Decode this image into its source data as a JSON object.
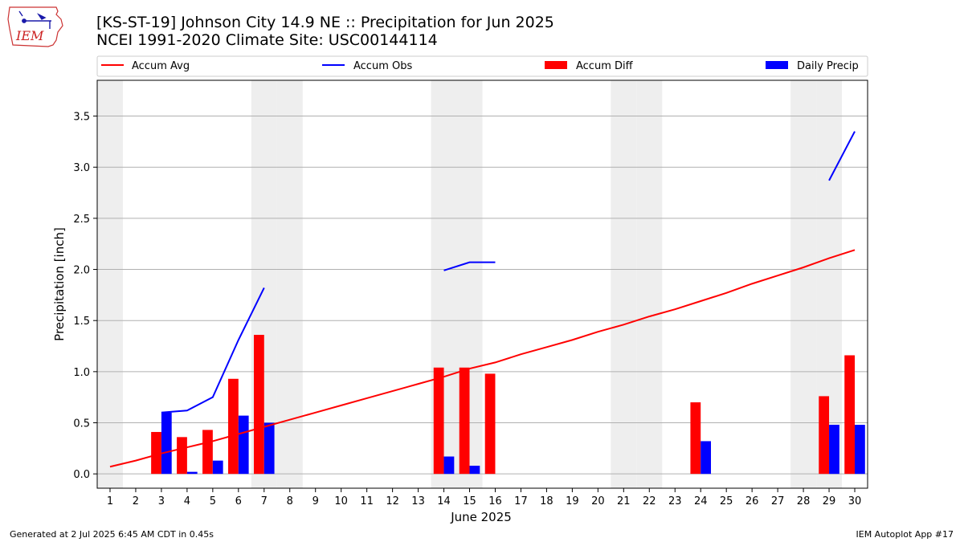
{
  "header": {
    "title_line1": "[KS-ST-19] Johnson City 14.9 NE :: Precipitation for Jun 2025",
    "title_line2": "NCEI 1991-2020 Climate Site: USC00144114",
    "logo_text": "IEM"
  },
  "footer": {
    "left": "Generated at 2 Jul 2025 6:45 AM CDT in 0.45s",
    "right": "IEM Autoplot App #17"
  },
  "colors": {
    "accum_avg": "#ff0000",
    "accum_obs": "#0000ff",
    "accum_diff": "#ff0000",
    "daily_precip": "#0000ff",
    "weekend_shade": "#eeeeee",
    "grid": "#b0b0b0"
  },
  "chart_data": {
    "type": "bar",
    "xlabel": "June 2025",
    "ylabel": "Precipitation [inch]",
    "xlim": [
      0.5,
      30.5
    ],
    "ylim": [
      -0.14,
      3.85
    ],
    "yticks": [
      0.0,
      0.5,
      1.0,
      1.5,
      2.0,
      2.5,
      3.0,
      3.5
    ],
    "ytick_labels": [
      "0.0",
      "0.5",
      "1.0",
      "1.5",
      "2.0",
      "2.5",
      "3.0",
      "3.5"
    ],
    "days": [
      1,
      2,
      3,
      4,
      5,
      6,
      7,
      8,
      9,
      10,
      11,
      12,
      13,
      14,
      15,
      16,
      17,
      18,
      19,
      20,
      21,
      22,
      23,
      24,
      25,
      26,
      27,
      28,
      29,
      30
    ],
    "weekend_days": [
      1,
      7,
      8,
      14,
      15,
      21,
      22,
      28,
      29
    ],
    "grid": "horizontal",
    "legend_position": "top",
    "legend": [
      "Accum Avg",
      "Accum Obs",
      "Accum Diff",
      "Daily Precip"
    ],
    "series": [
      {
        "name": "Accum Avg",
        "type": "line",
        "values": [
          0.07,
          0.13,
          0.2,
          0.26,
          0.32,
          0.39,
          0.46,
          0.53,
          0.6,
          0.67,
          0.74,
          0.81,
          0.88,
          0.95,
          1.03,
          1.09,
          1.17,
          1.24,
          1.31,
          1.39,
          1.46,
          1.54,
          1.61,
          1.69,
          1.77,
          1.86,
          1.94,
          2.02,
          2.11,
          2.19
        ]
      },
      {
        "name": "Accum Obs",
        "type": "line",
        "values": [
          null,
          null,
          0.6,
          0.62,
          0.75,
          1.31,
          1.82,
          null,
          null,
          null,
          null,
          null,
          null,
          1.99,
          2.07,
          2.07,
          null,
          null,
          null,
          null,
          null,
          null,
          null,
          null,
          null,
          null,
          null,
          null,
          2.87,
          3.35
        ]
      },
      {
        "name": "Accum Diff",
        "type": "bar",
        "values": [
          null,
          null,
          0.41,
          0.36,
          0.43,
          0.93,
          1.36,
          null,
          null,
          null,
          null,
          null,
          null,
          1.04,
          1.04,
          0.98,
          null,
          null,
          null,
          null,
          null,
          null,
          null,
          0.7,
          null,
          null,
          null,
          null,
          0.76,
          1.16
        ]
      },
      {
        "name": "Daily Precip",
        "type": "bar",
        "values": [
          null,
          null,
          0.6,
          0.02,
          0.13,
          0.57,
          0.5,
          null,
          null,
          null,
          null,
          null,
          null,
          0.17,
          0.08,
          null,
          null,
          null,
          null,
          null,
          null,
          null,
          null,
          0.32,
          null,
          null,
          null,
          null,
          0.48,
          0.48
        ]
      }
    ]
  }
}
